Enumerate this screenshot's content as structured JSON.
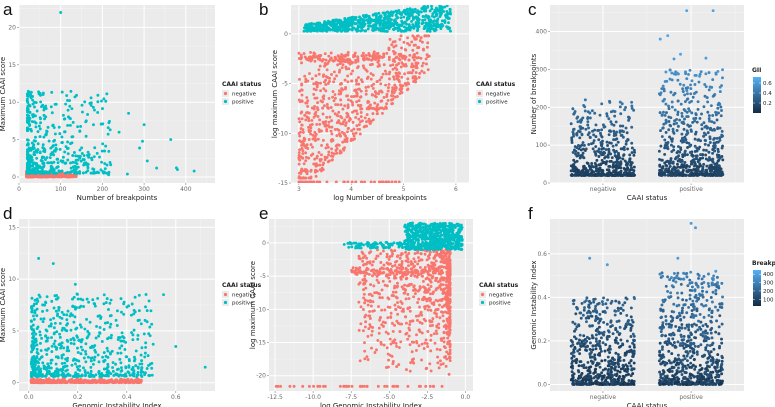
{
  "colors": {
    "negative": "#F8766D",
    "positive": "#00BFC4",
    "panel_bg": "#EBEBEB",
    "grid_major": "#FFFFFF",
    "dark_blue": "#132B43",
    "light_blue": "#56B1F7"
  },
  "chart_data": [
    {
      "id": "a",
      "type": "scatter",
      "letter": "a",
      "xlabel": "Number of breakpoints",
      "ylabel": "Maximum CAAI score",
      "xlim": [
        0,
        470
      ],
      "ylim": [
        -0.8,
        23
      ],
      "xticks": [
        0,
        100,
        200,
        300,
        400
      ],
      "xticklabels": [
        "0",
        "100",
        "200",
        "300",
        "400"
      ],
      "yticks": [
        0,
        5,
        10,
        15,
        20
      ],
      "yticklabels": [
        "0",
        "5",
        "10",
        "15",
        "20"
      ],
      "legend": {
        "title": "CAAI status",
        "entries": [
          "negative",
          "positive"
        ],
        "position": "right"
      },
      "gen": "a"
    },
    {
      "id": "b",
      "type": "scatter",
      "letter": "b",
      "xlabel": "log Number of breakpoints",
      "ylabel": "log maximum CAAI score",
      "xlim": [
        2.85,
        6.25
      ],
      "ylim": [
        -15,
        2.9
      ],
      "xticks": [
        3,
        4,
        5,
        6
      ],
      "xticklabels": [
        "3",
        "4",
        "5",
        "6"
      ],
      "yticks": [
        -15,
        -10,
        -5,
        0
      ],
      "yticklabels": [
        "-15",
        "-10",
        "-5",
        "0"
      ],
      "legend": {
        "title": "CAAI status",
        "entries": [
          "negative",
          "positive"
        ],
        "position": "right"
      },
      "gen": "b"
    },
    {
      "id": "c",
      "type": "scatter",
      "letter": "c",
      "xlabel": "CAAI status",
      "ylabel": "Number of breakpoints",
      "xlim": [
        0.4,
        2.6
      ],
      "ylim": [
        0,
        470
      ],
      "xticks": [
        1,
        2
      ],
      "xticklabels": [
        "negative",
        "positive"
      ],
      "yticks": [
        0,
        100,
        200,
        300,
        400
      ],
      "yticklabels": [
        "0",
        "100",
        "200",
        "300",
        "400"
      ],
      "legend": {
        "title": "GII",
        "type": "colorbar",
        "ticks": [
          0.2,
          0.4,
          0.6
        ],
        "ticklabels": [
          "0.2",
          "0.4",
          "0.6"
        ],
        "range": [
          0.0,
          0.72
        ],
        "position": "right"
      },
      "gen": "c"
    },
    {
      "id": "d",
      "type": "scatter",
      "letter": "d",
      "xlabel": "Genomic Instability Index",
      "ylabel": "Maximum CAAI score",
      "xlim": [
        -0.04,
        0.76
      ],
      "ylim": [
        -0.8,
        15.8
      ],
      "xticks": [
        0.0,
        0.2,
        0.4,
        0.6
      ],
      "xticklabels": [
        "0.0",
        "0.2",
        "0.4",
        "0.6"
      ],
      "yticks": [
        0,
        5,
        10,
        15
      ],
      "yticklabels": [
        "0",
        "5",
        "10",
        "15"
      ],
      "legend": {
        "title": "CAAI status",
        "entries": [
          "negative",
          "positive"
        ],
        "position": "right"
      },
      "gen": "d"
    },
    {
      "id": "e",
      "type": "scatter",
      "letter": "e",
      "xlabel": "log Genomic Instability Index",
      "ylabel": "log maximum CAAI score",
      "xlim": [
        -12.9,
        0.5
      ],
      "ylim": [
        -22.3,
        3.6
      ],
      "xticks": [
        -12.5,
        -10.0,
        -7.5,
        -5.0,
        -2.5,
        0.0
      ],
      "xticklabels": [
        "-12.5",
        "-10.0",
        "-7.5",
        "-5.0",
        "-2.5",
        "0.0"
      ],
      "yticks": [
        -20,
        -15,
        -10,
        -5,
        0
      ],
      "yticklabels": [
        "-20",
        "-15",
        "-10",
        "-5",
        "0"
      ],
      "legend": {
        "title": "CAAI status",
        "entries": [
          "negative",
          "positive"
        ],
        "position": "right"
      },
      "gen": "e"
    },
    {
      "id": "f",
      "type": "scatter",
      "letter": "f",
      "xlabel": "CAAI status",
      "ylabel": "Genomic Instability Index",
      "xlim": [
        0.4,
        2.6
      ],
      "ylim": [
        -0.03,
        0.76
      ],
      "xticks": [
        1,
        2
      ],
      "xticklabels": [
        "negative",
        "positive"
      ],
      "yticks": [
        0.0,
        0.2,
        0.4,
        0.6
      ],
      "yticklabels": [
        "0.0",
        "0.2",
        "0.4",
        "0.6"
      ],
      "legend": {
        "title": "Breakpoints",
        "type": "colorbar",
        "ticks": [
          100,
          200,
          300,
          400
        ],
        "ticklabels": [
          "100",
          "200",
          "300",
          "400"
        ],
        "range": [
          20,
          450
        ],
        "position": "right"
      },
      "gen": "f"
    }
  ]
}
